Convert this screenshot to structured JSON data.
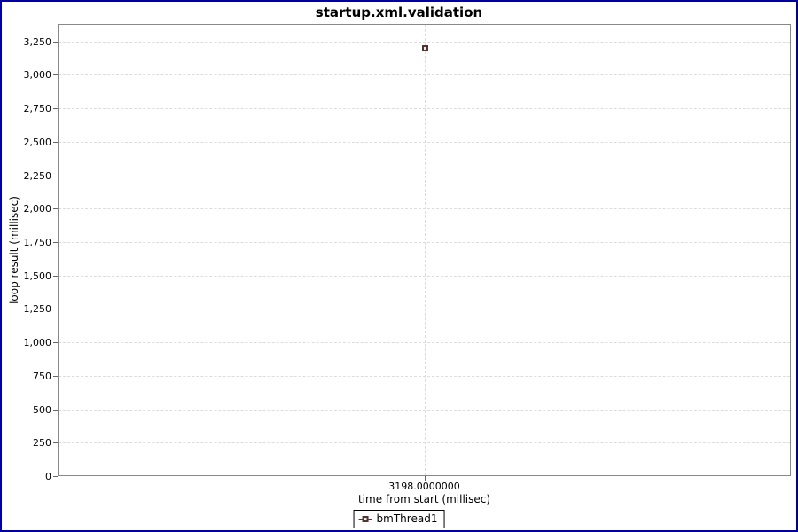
{
  "chart_data": {
    "type": "scatter",
    "title": "startup.xml.validation",
    "xlabel": "time from start (millisec)",
    "ylabel": "loop result (millisec)",
    "series": [
      {
        "name": "bmThread1",
        "points": [
          {
            "x": 3198,
            "y": 3198
          }
        ]
      }
    ],
    "xticks": [
      {
        "value": 3198,
        "label": "3198.0000000"
      }
    ],
    "yticks": [
      {
        "value": 0,
        "label": "0"
      },
      {
        "value": 250,
        "label": "250"
      },
      {
        "value": 500,
        "label": "500"
      },
      {
        "value": 750,
        "label": "750"
      },
      {
        "value": 1000,
        "label": "1,000"
      },
      {
        "value": 1250,
        "label": "1,250"
      },
      {
        "value": 1500,
        "label": "1,500"
      },
      {
        "value": 1750,
        "label": "1,750"
      },
      {
        "value": 2000,
        "label": "2,000"
      },
      {
        "value": 2250,
        "label": "2,250"
      },
      {
        "value": 2500,
        "label": "2,500"
      },
      {
        "value": 2750,
        "label": "2,750"
      },
      {
        "value": 3000,
        "label": "3,000"
      },
      {
        "value": 3250,
        "label": "3,250"
      }
    ],
    "ylim": [
      0,
      3380
    ],
    "grid": "dashed",
    "legend_position": "bottom-center",
    "legend_entries": [
      "bmThread1"
    ]
  },
  "colors": {
    "frame_border": "#0000A0",
    "plot_border": "#888888",
    "gridline": "#dddddd",
    "tick": "#666666",
    "text": "#000000",
    "marker_outline": "#553333",
    "marker_fill": "#ddf3e3",
    "legend_border": "#000000",
    "background": "#ffffff"
  }
}
